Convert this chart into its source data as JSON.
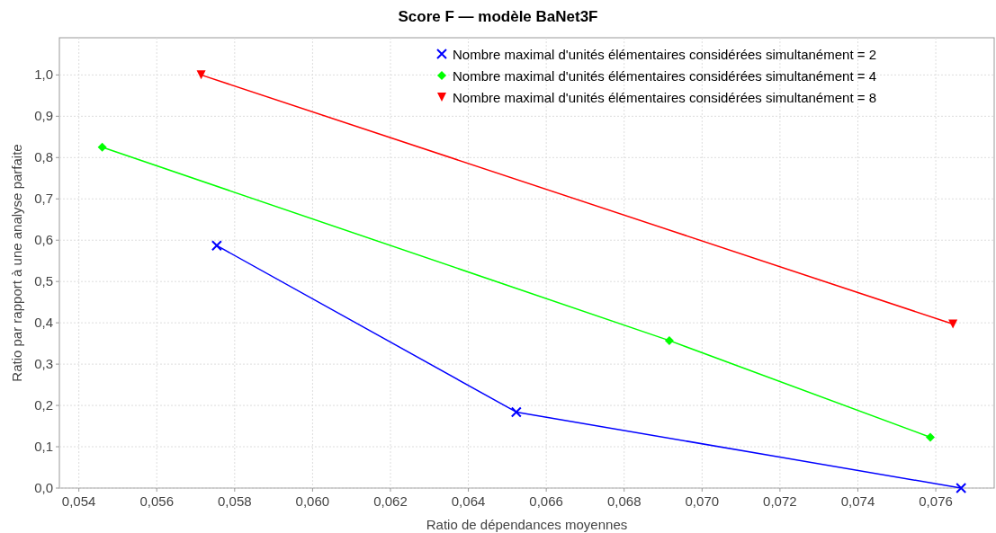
{
  "chart_data": {
    "type": "line",
    "title": "Score F — modèle BaNet3F",
    "xlabel": "Ratio de dépendances moyennes",
    "ylabel": "Ratio par rapport à une analyse parfaite",
    "xlim": [
      0.0535,
      0.0775
    ],
    "ylim": [
      0,
      1.09
    ],
    "xticks": [
      {
        "value": 0.054,
        "label": "0,054"
      },
      {
        "value": 0.056,
        "label": "0,056"
      },
      {
        "value": 0.058,
        "label": "0,058"
      },
      {
        "value": 0.06,
        "label": "0,060"
      },
      {
        "value": 0.062,
        "label": "0,062"
      },
      {
        "value": 0.064,
        "label": "0,064"
      },
      {
        "value": 0.066,
        "label": "0,066"
      },
      {
        "value": 0.068,
        "label": "0,068"
      },
      {
        "value": 0.07,
        "label": "0,070"
      },
      {
        "value": 0.072,
        "label": "0,072"
      },
      {
        "value": 0.074,
        "label": "0,074"
      },
      {
        "value": 0.076,
        "label": "0,076"
      }
    ],
    "yticks": [
      {
        "value": 0,
        "label": "0,0"
      },
      {
        "value": 0.1,
        "label": "0,1"
      },
      {
        "value": 0.2,
        "label": "0,2"
      },
      {
        "value": 0.3,
        "label": "0,3"
      },
      {
        "value": 0.4,
        "label": "0,4"
      },
      {
        "value": 0.5,
        "label": "0,5"
      },
      {
        "value": 0.6,
        "label": "0,6"
      },
      {
        "value": 0.7,
        "label": "0,7"
      },
      {
        "value": 0.8,
        "label": "0,8"
      },
      {
        "value": 0.9,
        "label": "0,9"
      },
      {
        "value": 1,
        "label": "1,0"
      }
    ],
    "grid": true,
    "legend": "top right",
    "line_style": "solid",
    "series": [
      {
        "name": "Nombre maximal d'unités élémentaires considérées simultanément = 2",
        "color": "#0000ff",
        "marker": "cross",
        "x": [
          0.05754,
          0.06523,
          0.07665
        ],
        "values": [
          0.587,
          0.184,
          0
        ]
      },
      {
        "name": "Nombre maximal d'unités élémentaires considérées simultanément = 4",
        "color": "#00ff00",
        "marker": "diamond",
        "x": [
          0.0546,
          0.06916,
          0.07586
        ],
        "values": [
          0.825,
          0.357,
          0.123
        ]
      },
      {
        "name": "Nombre maximal d'unités élémentaires considérées simultanément = 8",
        "color": "#ff0000",
        "marker": "triangle",
        "x": [
          0.05714,
          0.07644
        ],
        "values": [
          1.0,
          0.397
        ]
      }
    ]
  }
}
